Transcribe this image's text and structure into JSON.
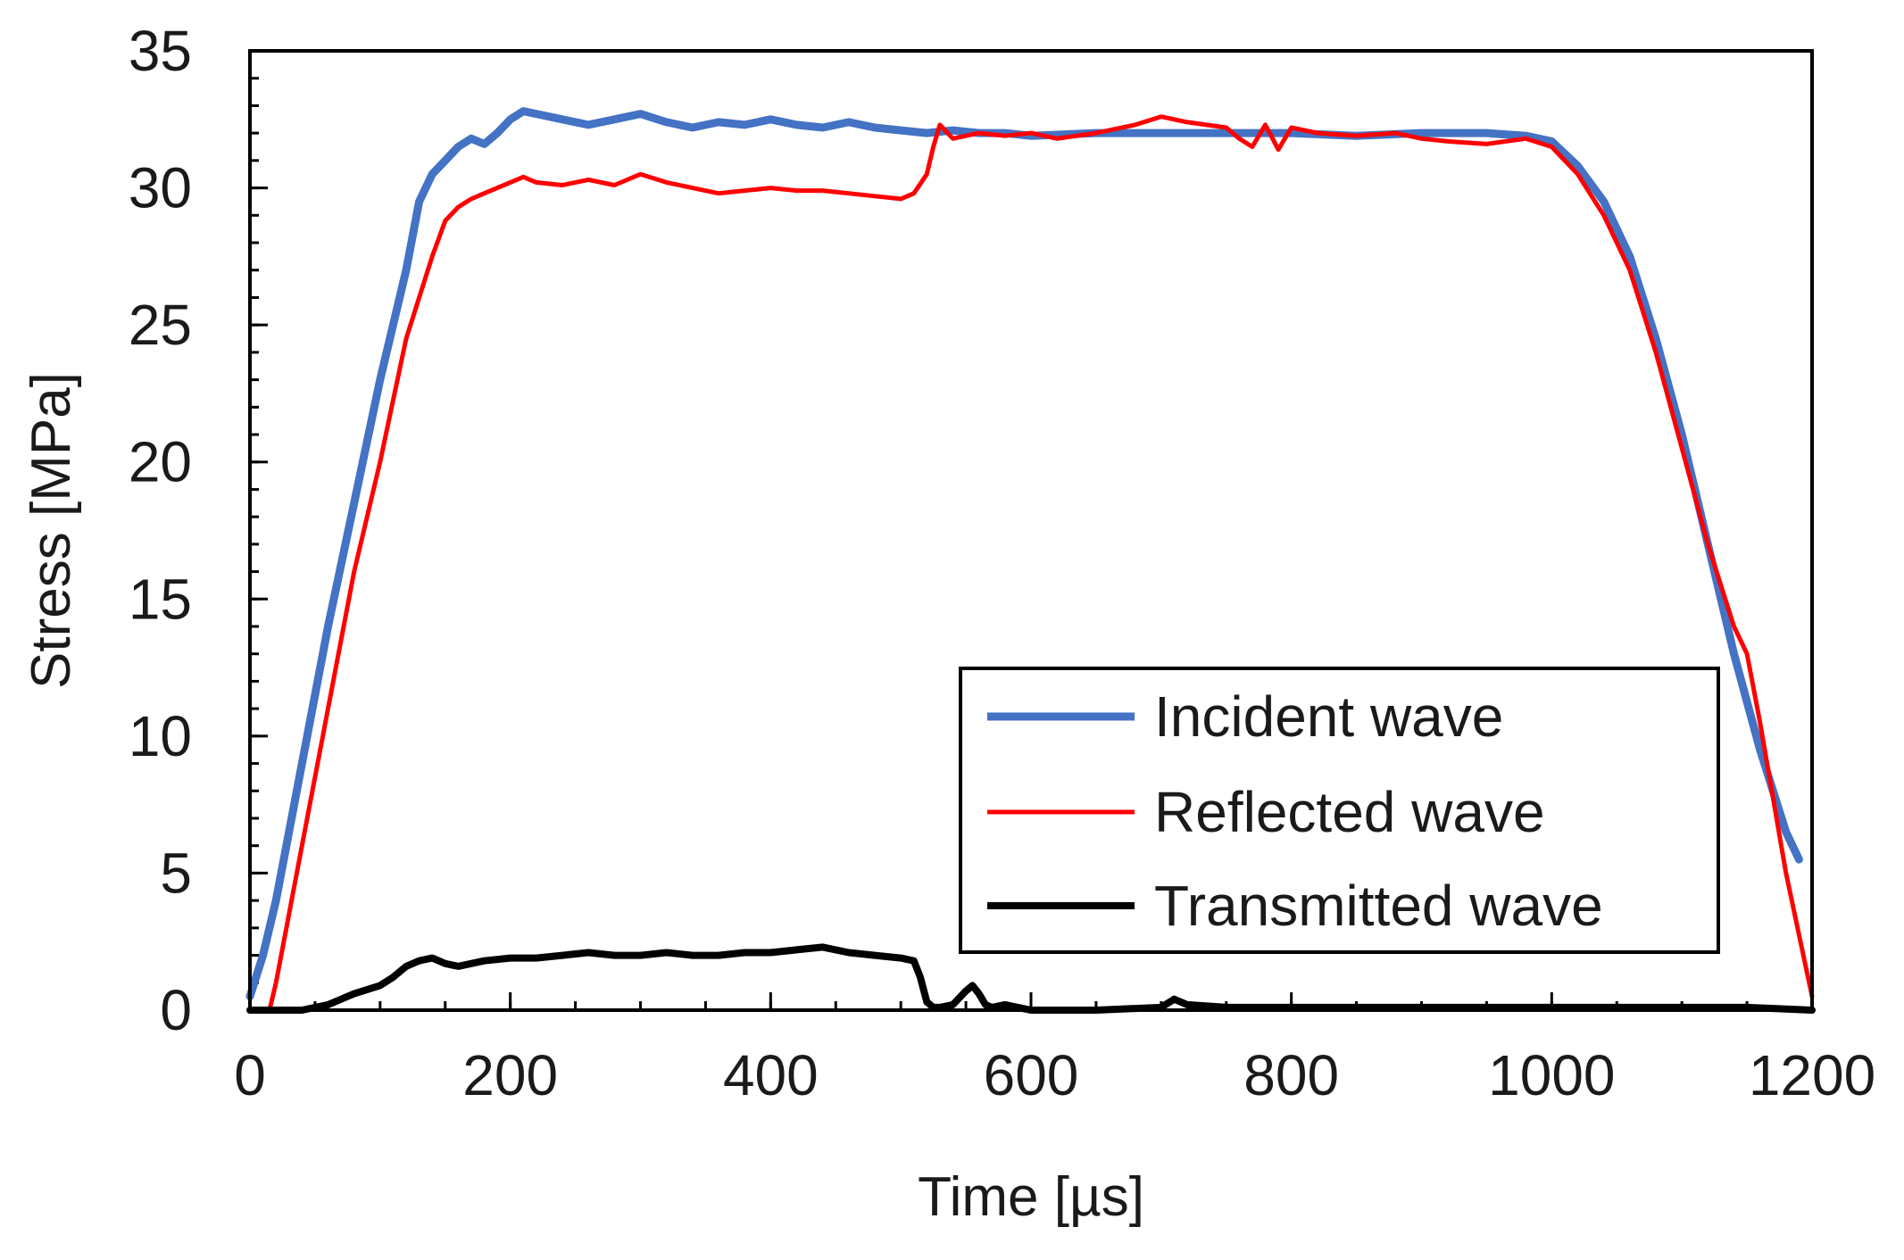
{
  "chart_data": {
    "type": "line",
    "title": "",
    "xlabel": "Time [µs]",
    "ylabel": "Stress [MPa]",
    "xlim": [
      0,
      1200
    ],
    "ylim": [
      0,
      35
    ],
    "xticks": [
      0,
      200,
      400,
      600,
      800,
      1000,
      1200
    ],
    "yticks": [
      0,
      5,
      10,
      15,
      20,
      25,
      30,
      35
    ],
    "x_minor_step": 50,
    "y_minor_step": 1,
    "grid": false,
    "legend_position": "bottom-right",
    "series": [
      {
        "name": "Incident wave",
        "color": "#4472C4",
        "x": [
          0,
          10,
          20,
          40,
          60,
          80,
          100,
          120,
          130,
          140,
          150,
          160,
          170,
          180,
          190,
          200,
          210,
          220,
          240,
          260,
          280,
          300,
          320,
          340,
          360,
          380,
          400,
          420,
          440,
          460,
          480,
          500,
          520,
          540,
          560,
          580,
          600,
          650,
          700,
          750,
          800,
          850,
          900,
          950,
          980,
          1000,
          1020,
          1040,
          1060,
          1080,
          1100,
          1120,
          1140,
          1160,
          1180,
          1190
        ],
        "values": [
          0.5,
          2.0,
          4.0,
          9.0,
          14.0,
          18.5,
          23.0,
          27.0,
          29.5,
          30.5,
          31.0,
          31.5,
          31.8,
          31.6,
          32.0,
          32.5,
          32.8,
          32.7,
          32.5,
          32.3,
          32.5,
          32.7,
          32.4,
          32.2,
          32.4,
          32.3,
          32.5,
          32.3,
          32.2,
          32.4,
          32.2,
          32.1,
          32.0,
          32.1,
          32.0,
          32.0,
          31.9,
          32.0,
          32.0,
          32.0,
          32.0,
          31.9,
          32.0,
          32.0,
          31.9,
          31.7,
          30.8,
          29.5,
          27.5,
          24.5,
          21.0,
          17.0,
          13.0,
          9.5,
          6.5,
          5.5
        ]
      },
      {
        "name": "Reflected wave",
        "color": "#FF0000",
        "x": [
          0,
          15,
          20,
          40,
          60,
          80,
          100,
          120,
          140,
          150,
          160,
          170,
          180,
          200,
          210,
          220,
          240,
          260,
          280,
          300,
          320,
          340,
          360,
          380,
          400,
          420,
          440,
          460,
          480,
          500,
          510,
          520,
          525,
          530,
          540,
          560,
          580,
          600,
          620,
          650,
          680,
          700,
          720,
          750,
          760,
          770,
          780,
          790,
          800,
          820,
          850,
          880,
          900,
          920,
          950,
          980,
          1000,
          1020,
          1040,
          1060,
          1080,
          1100,
          1120,
          1140,
          1150,
          1160,
          1180,
          1200
        ],
        "values": [
          0,
          0,
          1.0,
          6.0,
          11.0,
          16.0,
          20.0,
          24.5,
          27.5,
          28.8,
          29.3,
          29.6,
          29.8,
          30.2,
          30.4,
          30.2,
          30.1,
          30.3,
          30.1,
          30.5,
          30.2,
          30.0,
          29.8,
          29.9,
          30.0,
          29.9,
          29.9,
          29.8,
          29.7,
          29.6,
          29.8,
          30.5,
          31.5,
          32.3,
          31.8,
          32.0,
          31.9,
          32.0,
          31.8,
          32.0,
          32.3,
          32.6,
          32.4,
          32.2,
          31.8,
          31.5,
          32.3,
          31.4,
          32.2,
          32.0,
          31.9,
          32.0,
          31.8,
          31.7,
          31.6,
          31.8,
          31.5,
          30.5,
          29.0,
          27.0,
          24.0,
          20.5,
          17.0,
          14.0,
          13.0,
          10.5,
          5.0,
          0.5
        ]
      },
      {
        "name": "Transmitted wave",
        "color": "#000000",
        "x": [
          0,
          40,
          60,
          80,
          100,
          110,
          120,
          130,
          140,
          150,
          160,
          180,
          200,
          220,
          240,
          260,
          280,
          300,
          320,
          340,
          360,
          380,
          400,
          420,
          440,
          460,
          480,
          500,
          510,
          515,
          520,
          525,
          530,
          540,
          550,
          555,
          560,
          565,
          570,
          580,
          600,
          650,
          700,
          710,
          720,
          750,
          800,
          850,
          900,
          950,
          1000,
          1050,
          1100,
          1150,
          1200
        ],
        "values": [
          0,
          0,
          0.2,
          0.6,
          0.9,
          1.2,
          1.6,
          1.8,
          1.9,
          1.7,
          1.6,
          1.8,
          1.9,
          1.9,
          2.0,
          2.1,
          2.0,
          2.0,
          2.1,
          2.0,
          2.0,
          2.1,
          2.1,
          2.2,
          2.3,
          2.1,
          2.0,
          1.9,
          1.8,
          1.2,
          0.3,
          0.1,
          0.1,
          0.2,
          0.7,
          0.9,
          0.6,
          0.2,
          0.1,
          0.2,
          0.0,
          0.0,
          0.1,
          0.4,
          0.2,
          0.1,
          0.1,
          0.1,
          0.1,
          0.1,
          0.1,
          0.1,
          0.1,
          0.1,
          0.0
        ]
      }
    ]
  }
}
